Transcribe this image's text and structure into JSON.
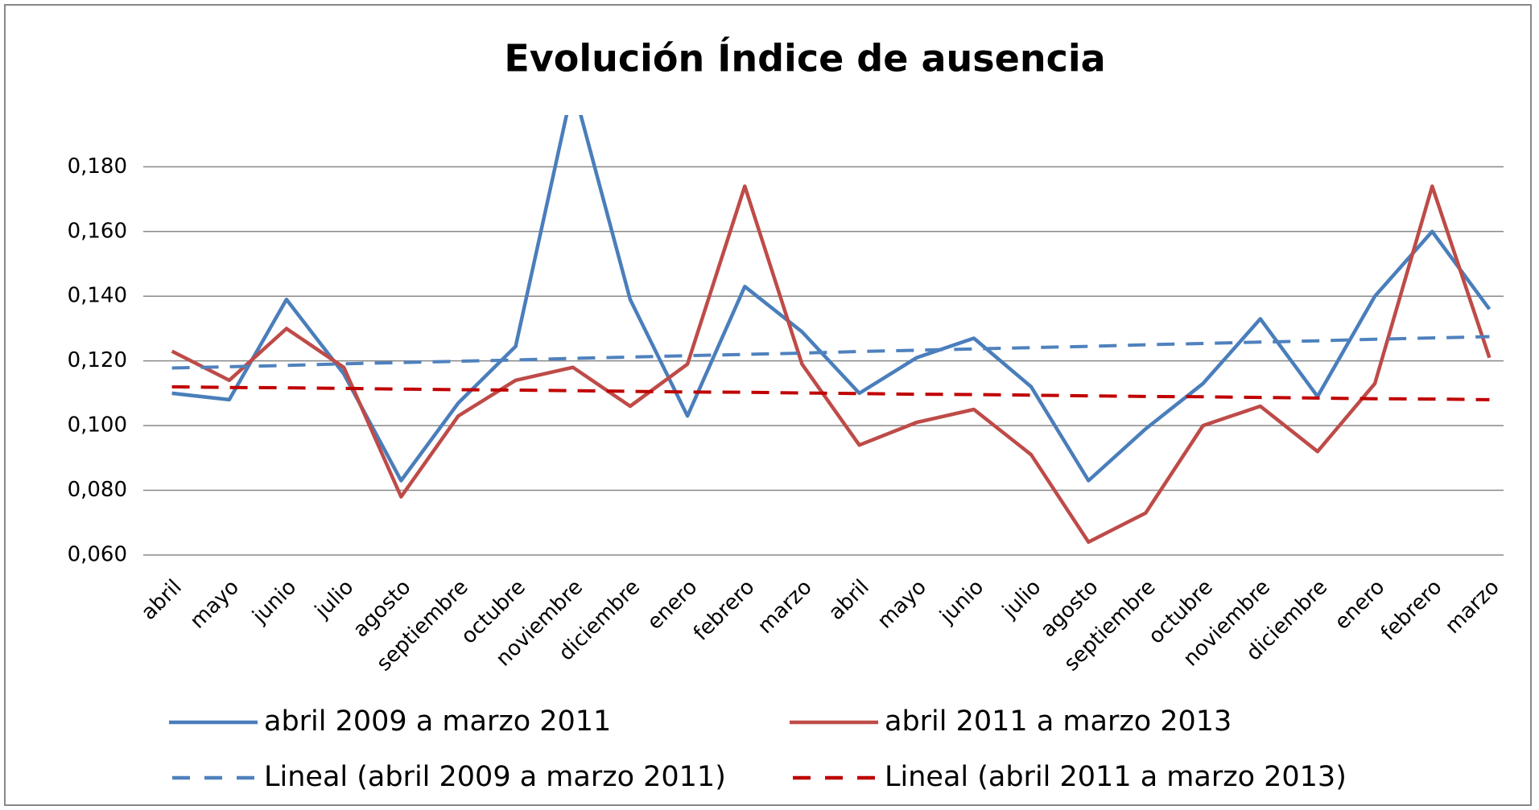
{
  "chart_data": {
    "type": "line",
    "title": "Evolución Índice de ausencia",
    "categories": [
      "abril",
      "mayo",
      "junio",
      "julio",
      "agosto",
      "septiembre",
      "octubre",
      "noviembre",
      "diciembre",
      "enero",
      "febrero",
      "marzo",
      "abril",
      "mayo",
      "junio",
      "julio",
      "agosto",
      "septiembre",
      "octubre",
      "noviembre",
      "diciembre",
      "enero",
      "febrero",
      "marzo"
    ],
    "series": [
      {
        "name": "abril 2009 a marzo 2011",
        "color": "#4a7ebb",
        "dash": false,
        "values": [
          0.11,
          0.108,
          0.139,
          0.116,
          0.083,
          0.107,
          0.1245,
          0.205,
          0.139,
          0.103,
          0.143,
          0.129,
          0.11,
          0.121,
          0.127,
          0.112,
          0.083,
          0.099,
          0.113,
          0.133,
          0.109,
          0.14,
          0.16,
          0.136
        ]
      },
      {
        "name": "abril 2011 a marzo 2013",
        "color": "#be4b48",
        "dash": false,
        "values": [
          0.123,
          0.114,
          0.13,
          0.118,
          0.078,
          0.103,
          0.114,
          0.118,
          0.106,
          0.119,
          0.174,
          0.119,
          0.094,
          0.101,
          0.105,
          0.091,
          0.064,
          0.073,
          0.1,
          0.106,
          0.092,
          0.113,
          0.174,
          0.121
        ]
      },
      {
        "name": "Lineal (abril 2009 a marzo 2011)",
        "color": "#4f81bd",
        "dash": true,
        "values": [
          0.1178,
          0.1182,
          0.1186,
          0.1191,
          0.1195,
          0.1199,
          0.1203,
          0.1208,
          0.1212,
          0.1216,
          0.122,
          0.1224,
          0.1229,
          0.1233,
          0.1237,
          0.1241,
          0.1245,
          0.125,
          0.1254,
          0.1258,
          0.1262,
          0.1267,
          0.1271,
          0.1275
        ]
      },
      {
        "name": "Lineal (abril 2011 a marzo 2013)",
        "color": "#c00000",
        "dash": true,
        "values": [
          0.112,
          0.1118,
          0.1117,
          0.1115,
          0.1113,
          0.1111,
          0.111,
          0.1108,
          0.1106,
          0.1104,
          0.1103,
          0.1101,
          0.1099,
          0.1097,
          0.1096,
          0.1094,
          0.1092,
          0.109,
          0.1089,
          0.1087,
          0.1085,
          0.1083,
          0.1082,
          0.108
        ]
      }
    ],
    "ylim": [
      0.06,
      0.196
    ],
    "yticks": [
      {
        "value": 0.06,
        "label": "0,060"
      },
      {
        "value": 0.08,
        "label": "0,080"
      },
      {
        "value": 0.1,
        "label": "0,100"
      },
      {
        "value": 0.12,
        "label": "0,120"
      },
      {
        "value": 0.14,
        "label": "0,140"
      },
      {
        "value": 0.16,
        "label": "0,160"
      },
      {
        "value": 0.18,
        "label": "0,180"
      }
    ],
    "grid": true
  }
}
